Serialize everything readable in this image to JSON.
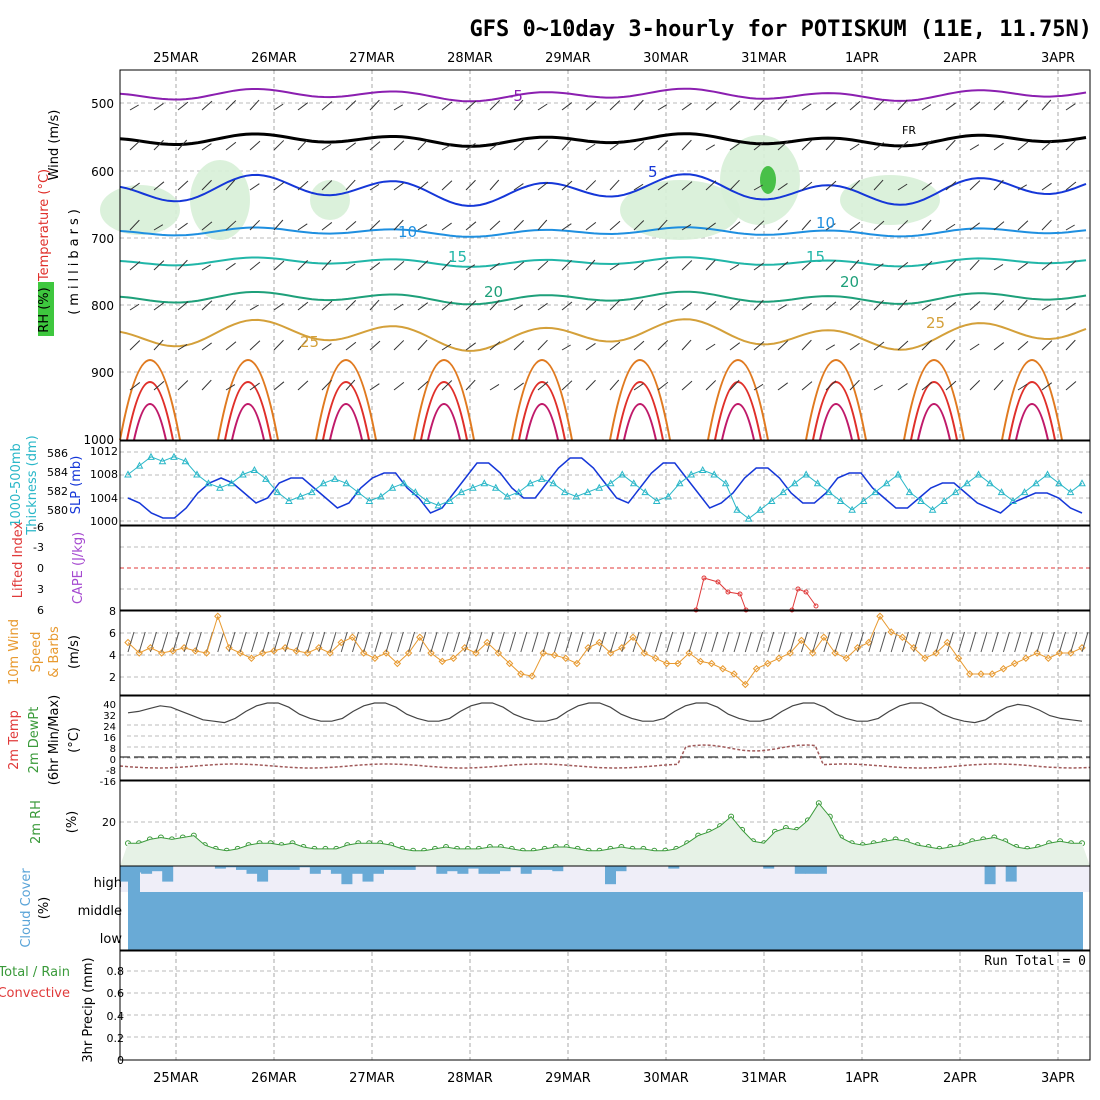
{
  "title": "GFS 0~10day 3-hourly for POTISKUM (11E, 11.75N)",
  "dates": [
    "25MAR",
    "26MAR",
    "27MAR",
    "28MAR",
    "29MAR",
    "30MAR",
    "31MAR",
    "1APR",
    "2APR",
    "3APR"
  ],
  "panels": {
    "upper": {
      "label_wind": "Wind (m/s)",
      "label_temp": "Temperature (°C)",
      "label_rh": "RH (%)",
      "label_unit": "(millibars)",
      "ticks": [
        "500",
        "600",
        "700",
        "800",
        "900",
        "1000"
      ],
      "contour_labels": [
        "-5",
        "5",
        "10",
        "15",
        "20",
        "25",
        "10",
        "FR",
        "10"
      ]
    },
    "slp": {
      "label_a": "1000-500mb",
      "label_b": "Thickness (dm)",
      "label_c": "SLP (mb)",
      "left_ticks": [
        "586",
        "584",
        "582",
        "580"
      ],
      "right_ticks": [
        "1012",
        "1008",
        "1004",
        "1000"
      ]
    },
    "li": {
      "label_a": "Lifted Index",
      "label_b": "CAPE (J/kg)",
      "ticks": [
        "-6",
        "-3",
        "0",
        "3",
        "6"
      ]
    },
    "wind10": {
      "label_a": "10m Wind",
      "label_b": "Speed",
      "label_c": "& Barbs",
      "label_d": "(m/s)",
      "ticks": [
        "8",
        "6",
        "4",
        "2"
      ]
    },
    "temp2m": {
      "label_a": "2m Temp",
      "label_b": "2m DewPt",
      "label_c": "(6hr Min/Max)",
      "label_d": "(°C)",
      "ticks": [
        "40",
        "32",
        "24",
        "16",
        "8",
        "0",
        "-8",
        "-16"
      ]
    },
    "rh2m": {
      "label_a": "2m RH",
      "label_b": "(%)",
      "ticks": [
        "20"
      ]
    },
    "cloud": {
      "label_a": "Cloud Cover",
      "label_b": "(%)",
      "levels": [
        "high",
        "middle",
        "low"
      ]
    },
    "precip": {
      "label_a": "Total / Rain",
      "label_b": "Convective",
      "label_c": "3hr Precip (mm)",
      "run_total": "Run Total = 0",
      "ticks": [
        "0.8",
        "0.6",
        "0.4",
        "0.2",
        "0"
      ]
    }
  },
  "colors": {
    "blue": "#1537d8",
    "cyan": "#2ab7c8",
    "orange": "#e89a30",
    "green": "#3a9a3a",
    "red": "#e03a3a",
    "purple": "#9a1fb5",
    "cloud": "#69aad6"
  },
  "chart_data": [
    {
      "type": "line",
      "name": "SLP (mb)",
      "ylim": [
        999,
        1014
      ],
      "values": [
        1004,
        1003,
        1001,
        1000,
        1000,
        1002,
        1005,
        1007,
        1008,
        1007,
        1005,
        1003,
        1004,
        1007,
        1008,
        1008,
        1006,
        1004,
        1002,
        1003,
        1006,
        1008,
        1009,
        1009,
        1006,
        1004,
        1001,
        1002,
        1005,
        1008,
        1011,
        1011,
        1009,
        1006,
        1004,
        1004,
        1007,
        1010,
        1012,
        1012,
        1010,
        1007,
        1004,
        1003,
        1006,
        1009,
        1011,
        1011,
        1008,
        1005,
        1002,
        1003,
        1005,
        1008,
        1010,
        1010,
        1008,
        1005,
        1003,
        1003,
        1005,
        1008,
        1009,
        1009,
        1006,
        1004,
        1002,
        1002,
        1004,
        1006,
        1007,
        1007,
        1005,
        1003,
        1002,
        1001,
        1003,
        1004,
        1005,
        1005,
        1004,
        1002,
        1001
      ]
    },
    {
      "type": "line",
      "name": "1000-500mb Thickness (dm)",
      "ylim": [
        578.5,
        587
      ],
      "values": [
        584,
        585,
        586,
        585.5,
        586,
        585.5,
        584,
        583,
        582.5,
        583,
        584,
        584.5,
        583.5,
        582,
        581,
        581.5,
        582,
        583,
        583.5,
        583,
        582,
        581,
        581.5,
        582.5,
        583,
        582,
        581,
        580.5,
        581,
        582,
        582.5,
        583,
        582.5,
        581.5,
        582,
        583,
        583.5,
        583,
        582,
        581.5,
        582,
        582.5,
        583,
        584,
        583,
        582,
        581,
        581.5,
        583,
        584,
        584.5,
        584,
        583,
        580,
        579,
        580,
        581,
        582,
        583,
        584,
        583,
        582,
        581,
        580,
        581,
        582,
        583,
        584,
        582,
        581,
        580,
        581,
        582,
        583,
        584,
        583,
        582,
        581,
        582,
        583,
        584,
        583,
        582,
        583
      ]
    },
    {
      "type": "line",
      "name": "CAPE (J/kg)",
      "values": [
        2,
        2,
        3,
        3,
        3,
        3
      ]
    },
    {
      "type": "line",
      "name": "10m Wind Speed",
      "ylim": [
        0,
        8
      ],
      "values": [
        5,
        4,
        4.5,
        4,
        4.2,
        4.5,
        4.2,
        4,
        7.5,
        4.5,
        4,
        3.5,
        4,
        4.2,
        4.5,
        4.2,
        4,
        4.5,
        4,
        5,
        5.5,
        4,
        3.5,
        4,
        3,
        4,
        5.5,
        4,
        3.2,
        3.5,
        4.5,
        4,
        5,
        4,
        3,
        2,
        1.8,
        4,
        3.8,
        3.5,
        3,
        4.5,
        5,
        4,
        4.5,
        5.5,
        4,
        3.5,
        3,
        3,
        4,
        3.2,
        3,
        2.5,
        2,
        1,
        2.5,
        3,
        3.5,
        4,
        5.2,
        4,
        5.5,
        4,
        3.5,
        4.5,
        5,
        7.5,
        6,
        5.5,
        4.5,
        3.5,
        4,
        5,
        3.5,
        2,
        2,
        2,
        2.5,
        3,
        3.5,
        4,
        3.5,
        4,
        4,
        4.5
      ]
    },
    {
      "type": "area",
      "name": "2m Temp",
      "ylim": [
        -16,
        44
      ],
      "values": [
        32,
        33,
        35,
        37,
        36,
        33,
        30,
        27,
        26,
        25,
        28,
        33,
        37,
        39,
        39,
        36,
        31,
        28,
        26,
        26,
        28,
        33,
        37,
        39,
        39,
        36,
        31,
        28,
        26,
        26,
        28,
        33,
        37,
        39,
        39,
        36,
        31,
        28,
        26,
        26,
        28,
        33,
        37,
        39,
        39,
        36,
        31,
        28,
        26,
        26,
        28,
        33,
        37,
        39,
        39,
        36,
        31,
        28,
        26,
        26,
        28,
        33,
        37,
        39,
        39,
        36,
        31,
        28,
        26,
        26,
        28,
        33,
        37,
        39,
        39,
        36,
        31,
        28,
        26,
        25,
        27,
        32,
        36,
        38,
        37,
        34,
        30,
        28,
        27,
        26
      ]
    },
    {
      "type": "area",
      "name": "2m RH",
      "ylim": [
        0,
        40
      ],
      "values": [
        12,
        12,
        14,
        15,
        14,
        15,
        16,
        11,
        9,
        8,
        9,
        11,
        12,
        12,
        11,
        12,
        10,
        9,
        9,
        9,
        11,
        12,
        12,
        12,
        11,
        9,
        8,
        8,
        9,
        10,
        9,
        9,
        9,
        10,
        10,
        9,
        8,
        8,
        9,
        10,
        10,
        9,
        8,
        8,
        9,
        10,
        9,
        9,
        8,
        8,
        9,
        12,
        16,
        18,
        21,
        26,
        19,
        13,
        12,
        18,
        20,
        19,
        24,
        33,
        26,
        15,
        12,
        11,
        12,
        13,
        14,
        13,
        11,
        10,
        9,
        10,
        11,
        13,
        14,
        15,
        13,
        10,
        9,
        10,
        12,
        13,
        12,
        12
      ]
    },
    {
      "type": "bar",
      "name": "Cloud Cover high (%)",
      "ylim": [
        0,
        100
      ],
      "values": [
        60,
        25,
        30,
        20,
        60,
        0,
        0,
        0,
        0,
        10,
        5,
        15,
        30,
        60,
        15,
        15,
        15,
        5,
        30,
        15,
        30,
        70,
        30,
        60,
        30,
        15,
        15,
        15,
        0,
        0,
        30,
        20,
        30,
        10,
        30,
        30,
        20,
        5,
        30,
        15,
        15,
        20,
        0,
        0,
        0,
        0,
        70,
        20,
        0,
        0,
        0,
        0,
        10,
        0,
        0,
        0,
        0,
        0,
        0,
        0,
        0,
        10,
        0,
        0,
        30,
        30,
        30,
        0,
        0,
        0,
        0,
        0,
        0,
        0,
        0,
        0,
        0,
        0,
        0,
        0,
        0,
        0,
        70,
        0,
        60,
        0,
        0,
        0,
        0,
        0,
        0,
        0
      ]
    },
    {
      "type": "bar",
      "name": "3hr Precip (mm)",
      "ylim": [
        0,
        0.9
      ],
      "values": [
        0,
        0,
        0,
        0,
        0,
        0,
        0,
        0,
        0,
        0
      ]
    }
  ]
}
